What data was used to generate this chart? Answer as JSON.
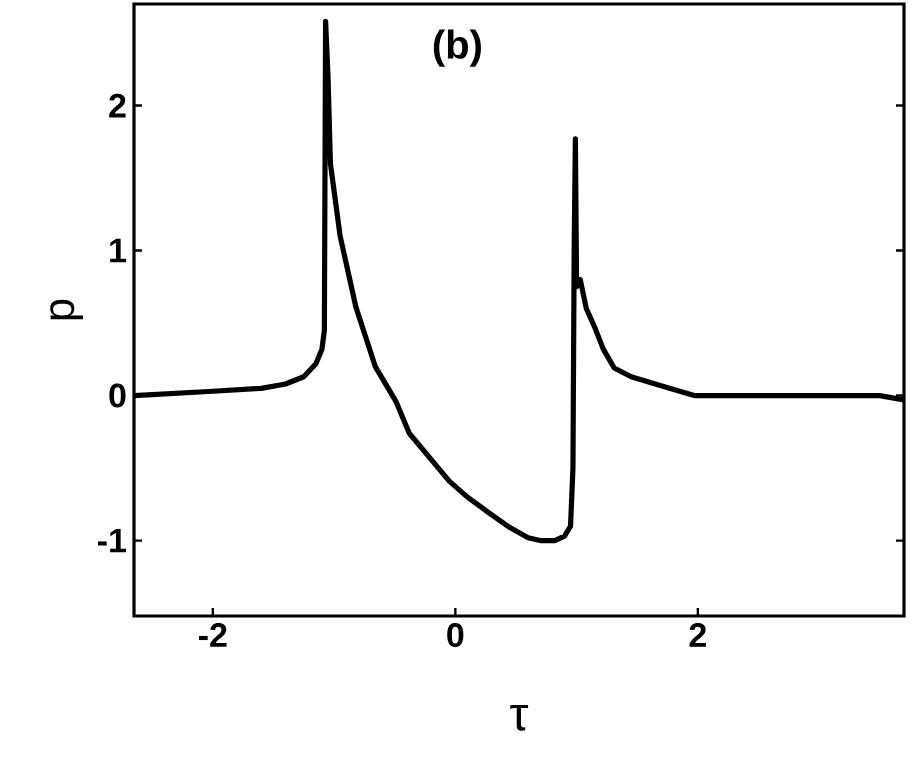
{
  "chart_data": {
    "type": "line",
    "title": "(b)",
    "xlabel": "τ",
    "ylabel": "p",
    "xlim": [
      -2.65,
      3.7
    ],
    "ylim": [
      -1.52,
      2.7
    ],
    "xticks": [
      -2,
      0,
      2
    ],
    "yticks": [
      -1,
      0,
      1,
      2
    ],
    "marker": "none",
    "line_style": "solid",
    "series": [
      {
        "color": "#000000",
        "x": [
          -2.65,
          -2.0,
          -1.6,
          -1.4,
          -1.25,
          -1.15,
          -1.1,
          -1.08,
          -1.07,
          -1.05,
          -1.03,
          -0.95,
          -0.82,
          -0.66,
          -0.49,
          -0.38,
          -0.2,
          -0.05,
          0.1,
          0.28,
          0.45,
          0.6,
          0.7,
          0.82,
          0.9,
          0.95,
          0.97,
          0.98,
          0.99,
          1.0,
          1.03,
          1.08,
          1.15,
          1.22,
          1.31,
          1.45,
          1.69,
          1.97,
          2.5,
          3.0,
          3.5,
          3.7
        ],
        "values": [
          0.0,
          0.03,
          0.05,
          0.08,
          0.13,
          0.22,
          0.32,
          0.45,
          2.58,
          2.2,
          1.6,
          1.1,
          0.61,
          0.2,
          -0.04,
          -0.26,
          -0.44,
          -0.59,
          -0.7,
          -0.81,
          -0.91,
          -0.98,
          -1.0,
          -1.0,
          -0.97,
          -0.9,
          -0.5,
          1.0,
          1.77,
          0.75,
          0.8,
          0.6,
          0.47,
          0.32,
          0.19,
          0.13,
          0.07,
          0.0,
          0.0,
          0.0,
          0.0,
          -0.03
        ]
      }
    ]
  }
}
